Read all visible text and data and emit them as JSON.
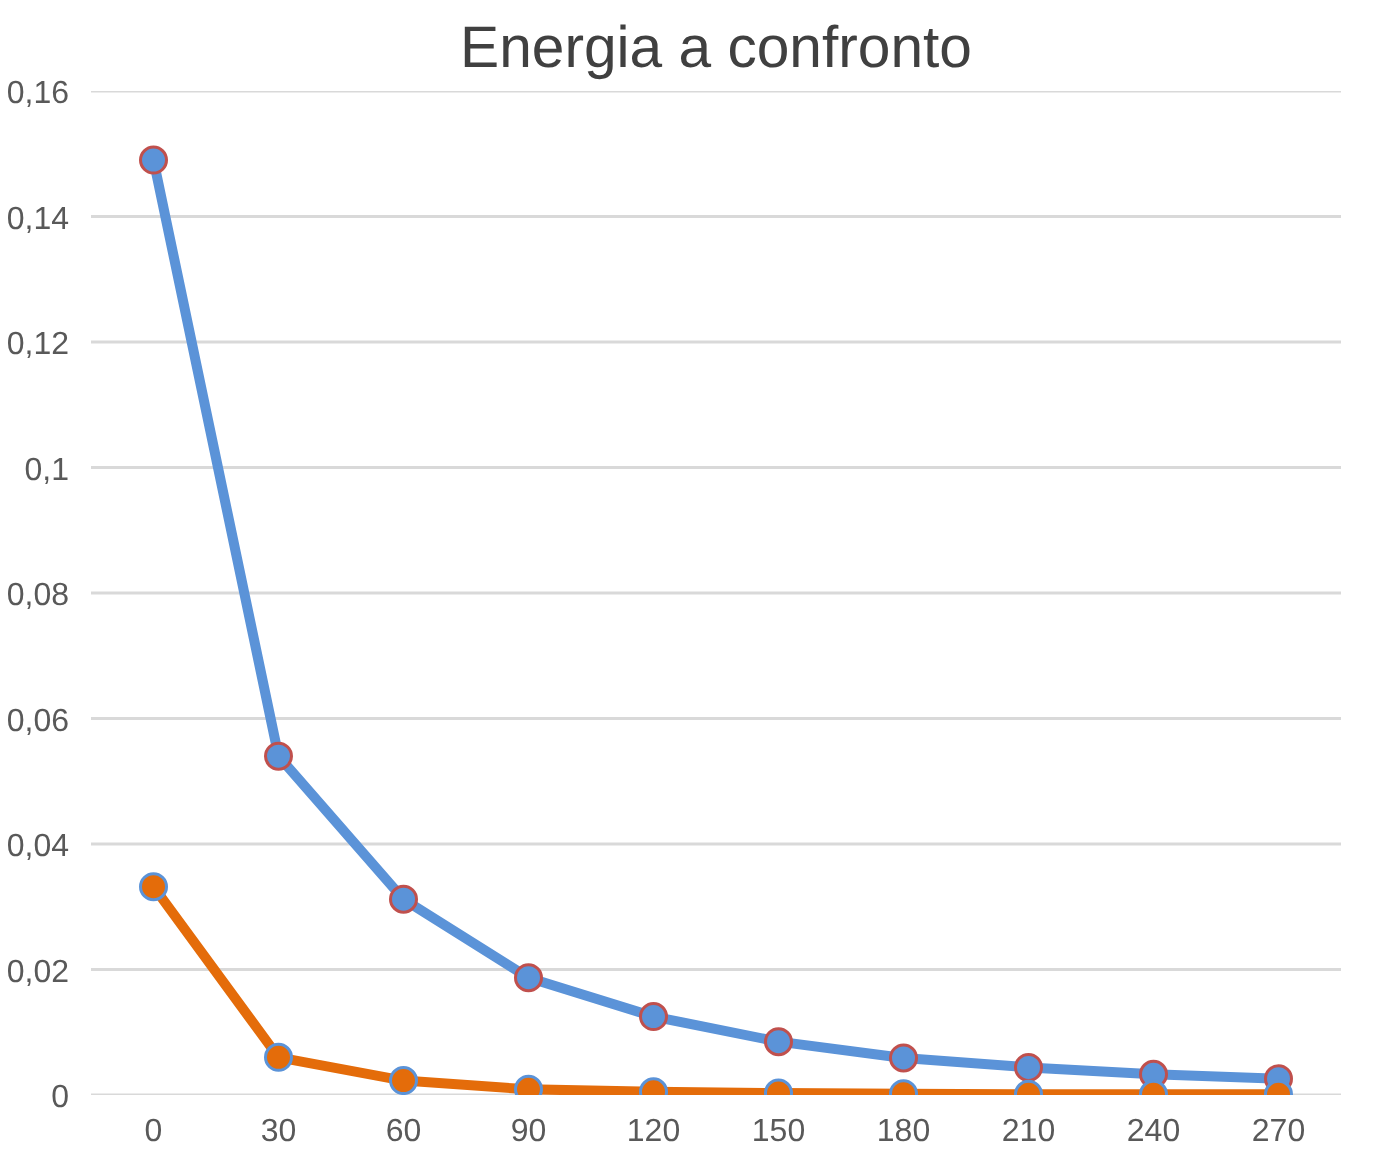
{
  "chart_data": {
    "type": "line",
    "title": "Energia a confronto",
    "categories": [
      "0",
      "30",
      "60",
      "90",
      "120",
      "150",
      "180",
      "210",
      "240",
      "270"
    ],
    "series": [
      {
        "color": "#5b93d8",
        "values": [
          0.149,
          0.054,
          0.0312,
          0.0187,
          0.0125,
          0.0085,
          0.0059,
          0.0044,
          0.0033,
          0.0026
        ]
      },
      {
        "color": "#e46c0a",
        "values": [
          0.0332,
          0.006,
          0.0023,
          0.0009,
          0.0005,
          0.0003,
          0.0002,
          0.0001,
          0.0001,
          0.0001
        ]
      }
    ],
    "ylim": [
      0,
      0.16
    ],
    "yticks": [
      {
        "value": 0,
        "label": "0"
      },
      {
        "value": 0.02,
        "label": "0,02"
      },
      {
        "value": 0.04,
        "label": "0,04"
      },
      {
        "value": 0.06,
        "label": "0,06"
      },
      {
        "value": 0.08,
        "label": "0,08"
      },
      {
        "value": 0.1,
        "label": "0,1"
      },
      {
        "value": 0.12,
        "label": "0,12"
      },
      {
        "value": 0.14,
        "label": "0,14"
      },
      {
        "value": 0.16,
        "label": "0,16"
      }
    ],
    "grid": "y",
    "marker": "circle"
  }
}
